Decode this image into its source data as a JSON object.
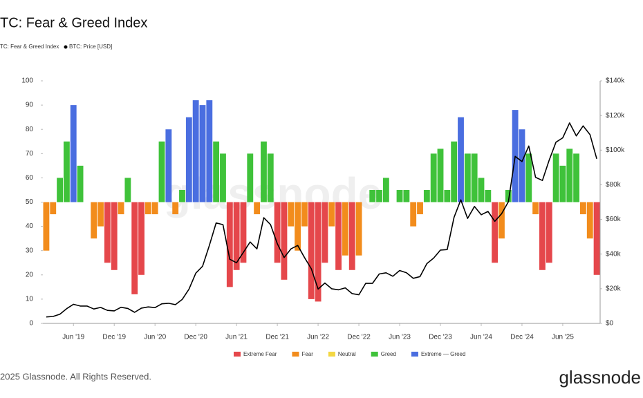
{
  "chart_data": {
    "type": "fear-greed",
    "title": "TC: Fear & Greed Index",
    "index_label": "TC: Fear & Greed Index",
    "watermark": "glassnode",
    "footer": "2025 Glassnode. All Rights Reserved.",
    "logo": "glassnode",
    "x": [
      "2019-02",
      "2019-03",
      "2019-04",
      "2019-05",
      "2019-06",
      "2019-07",
      "2019-08",
      "2019-09",
      "2019-10",
      "2019-11",
      "2019-12",
      "2020-01",
      "2020-02",
      "2020-03",
      "2020-04",
      "2020-05",
      "2020-06",
      "2020-07",
      "2020-08",
      "2020-09",
      "2020-10",
      "2020-11",
      "2020-12",
      "2021-01",
      "2021-02",
      "2021-03",
      "2021-04",
      "2021-05",
      "2021-06",
      "2021-07",
      "2021-08",
      "2021-09",
      "2021-10",
      "2021-11",
      "2021-12",
      "2022-01",
      "2022-02",
      "2022-03",
      "2022-04",
      "2022-05",
      "2022-06",
      "2022-07",
      "2022-08",
      "2022-09",
      "2022-10",
      "2022-11",
      "2022-12",
      "2023-01",
      "2023-02",
      "2023-03",
      "2023-04",
      "2023-05",
      "2023-06",
      "2023-07",
      "2023-08",
      "2023-09",
      "2023-10",
      "2023-11",
      "2023-12",
      "2024-01",
      "2024-02",
      "2024-03",
      "2024-04",
      "2024-05",
      "2024-06",
      "2024-07",
      "2024-08",
      "2024-09",
      "2024-10",
      "2024-11",
      "2024-12",
      "2025-01",
      "2025-02",
      "2025-03",
      "2025-04",
      "2025-05",
      "2025-06",
      "2025-07",
      "2025-08",
      "2025-09",
      "2025-10",
      "2025-11"
    ],
    "xticks": [
      {
        "value": "2019-06",
        "label": "Jun '19"
      },
      {
        "value": "2019-12",
        "label": "Dec '19"
      },
      {
        "value": "2020-06",
        "label": "Jun '20"
      },
      {
        "value": "2020-12",
        "label": "Dec '20"
      },
      {
        "value": "2021-06",
        "label": "Jun '21"
      },
      {
        "value": "2021-12",
        "label": "Dec '21"
      },
      {
        "value": "2022-06",
        "label": "Jun '22"
      },
      {
        "value": "2022-12",
        "label": "Dec '22"
      },
      {
        "value": "2023-06",
        "label": "Jun '23"
      },
      {
        "value": "2023-12",
        "label": "Dec '23"
      },
      {
        "value": "2024-06",
        "label": "Jun '24"
      },
      {
        "value": "2024-12",
        "label": "Dec '24"
      },
      {
        "value": "2025-06",
        "label": "Jun '25"
      }
    ],
    "ylim": [
      0,
      100
    ],
    "yticks": [
      0,
      10,
      20,
      30,
      40,
      50,
      60,
      70,
      80,
      90,
      100
    ],
    "y2lim": [
      0,
      140000
    ],
    "y2ticks": [
      {
        "value": 0,
        "label": "$0"
      },
      {
        "value": 20000,
        "label": "$20k"
      },
      {
        "value": 40000,
        "label": "$40k"
      },
      {
        "value": 60000,
        "label": "$60k"
      },
      {
        "value": 80000,
        "label": "$80k"
      },
      {
        "value": 100000,
        "label": "$100k"
      },
      {
        "value": 120000,
        "label": "$120k"
      },
      {
        "value": 140000,
        "label": "$140k"
      }
    ],
    "grid": false,
    "series": [
      {
        "name": "Extreme Fear",
        "color": "#e5474b",
        "values": [
          null,
          null,
          null,
          null,
          null,
          null,
          null,
          null,
          null,
          25,
          22,
          null,
          null,
          12,
          20,
          null,
          null,
          null,
          null,
          null,
          null,
          null,
          null,
          null,
          null,
          null,
          null,
          15,
          22,
          25,
          null,
          null,
          null,
          null,
          25,
          18,
          null,
          null,
          null,
          10,
          9,
          25,
          null,
          22,
          null,
          22,
          null,
          null,
          null,
          null,
          null,
          null,
          null,
          null,
          null,
          null,
          null,
          null,
          null,
          null,
          null,
          null,
          null,
          null,
          null,
          null,
          25,
          null,
          null,
          null,
          null,
          null,
          null,
          22,
          25,
          null,
          null,
          null,
          null,
          null,
          null,
          20
        ]
      },
      {
        "name": "Fear",
        "color": "#f28c1c",
        "values": [
          30,
          45,
          null,
          null,
          null,
          null,
          null,
          35,
          40,
          null,
          null,
          45,
          null,
          null,
          null,
          45,
          45,
          null,
          null,
          45,
          null,
          null,
          null,
          null,
          null,
          null,
          null,
          null,
          null,
          null,
          null,
          45,
          null,
          null,
          null,
          null,
          40,
          30,
          40,
          null,
          null,
          null,
          40,
          null,
          28,
          null,
          28,
          null,
          null,
          null,
          null,
          null,
          null,
          null,
          40,
          45,
          null,
          null,
          null,
          null,
          null,
          null,
          null,
          null,
          null,
          null,
          null,
          35,
          null,
          null,
          null,
          null,
          45,
          null,
          null,
          null,
          null,
          null,
          null,
          45,
          35,
          null
        ]
      },
      {
        "name": "Neutral",
        "color": "#f3d743",
        "values": [
          null,
          null,
          null,
          null,
          null,
          null,
          50,
          null,
          null,
          null,
          null,
          null,
          null,
          null,
          null,
          null,
          null,
          null,
          null,
          null,
          null,
          null,
          null,
          null,
          null,
          null,
          null,
          null,
          null,
          null,
          null,
          null,
          null,
          null,
          null,
          null,
          null,
          null,
          null,
          null,
          null,
          null,
          null,
          null,
          null,
          null,
          null,
          50,
          null,
          null,
          null,
          50,
          null,
          null,
          null,
          null,
          null,
          null,
          null,
          null,
          null,
          null,
          null,
          null,
          null,
          null,
          null,
          null,
          null,
          null,
          null,
          null,
          null,
          null,
          null,
          null,
          null,
          null,
          null,
          null,
          null,
          null
        ]
      },
      {
        "name": "Greed",
        "color": "#3fc23a",
        "values": [
          null,
          null,
          60,
          75,
          null,
          65,
          null,
          null,
          null,
          null,
          null,
          null,
          60,
          null,
          null,
          null,
          null,
          75,
          null,
          null,
          55,
          null,
          null,
          null,
          null,
          75,
          70,
          null,
          null,
          null,
          70,
          null,
          75,
          70,
          null,
          null,
          null,
          null,
          null,
          null,
          null,
          null,
          null,
          null,
          null,
          null,
          null,
          null,
          55,
          55,
          60,
          null,
          55,
          55,
          null,
          null,
          55,
          70,
          72,
          55,
          75,
          null,
          70,
          70,
          60,
          55,
          null,
          null,
          55,
          null,
          null,
          70,
          null,
          null,
          null,
          70,
          65,
          72,
          70,
          null,
          null,
          null
        ]
      },
      {
        "name": "Extreme — Greed",
        "color": "#4a6ee0",
        "values": [
          null,
          null,
          null,
          null,
          90,
          null,
          null,
          null,
          null,
          null,
          null,
          null,
          null,
          null,
          null,
          null,
          null,
          null,
          80,
          null,
          null,
          85,
          92,
          90,
          92,
          null,
          null,
          null,
          null,
          null,
          null,
          null,
          null,
          null,
          null,
          null,
          null,
          null,
          null,
          null,
          null,
          null,
          null,
          null,
          null,
          null,
          null,
          null,
          null,
          null,
          null,
          null,
          null,
          null,
          null,
          null,
          null,
          null,
          null,
          null,
          null,
          85,
          null,
          null,
          null,
          null,
          null,
          null,
          null,
          88,
          80,
          null,
          null,
          null,
          null,
          null,
          null,
          null,
          null,
          null,
          null,
          null
        ]
      },
      {
        "name": "BTC: Price [USD]",
        "color": "#000000",
        "axis": "y2",
        "values": [
          3700,
          4000,
          5300,
          8500,
          11000,
          10000,
          10000,
          8300,
          9200,
          7500,
          7200,
          9300,
          8600,
          6400,
          8800,
          9500,
          9100,
          11300,
          11600,
          10800,
          13800,
          19700,
          29000,
          33000,
          45000,
          58000,
          57000,
          37000,
          35000,
          41000,
          47000,
          43000,
          61000,
          57000,
          46000,
          38000,
          43000,
          45000,
          38000,
          31500,
          19800,
          23300,
          20000,
          19400,
          20500,
          17200,
          16500,
          23100,
          23100,
          28500,
          29200,
          27200,
          30500,
          29200,
          26000,
          27000,
          34500,
          37700,
          42300,
          42600,
          61200,
          71300,
          60600,
          67500,
          62700,
          64600,
          58900,
          63300,
          70200,
          96400,
          93400,
          102400,
          84300,
          82500,
          94200,
          104600,
          107100,
          115700,
          108200,
          114000,
          109000,
          95000
        ]
      }
    ]
  }
}
